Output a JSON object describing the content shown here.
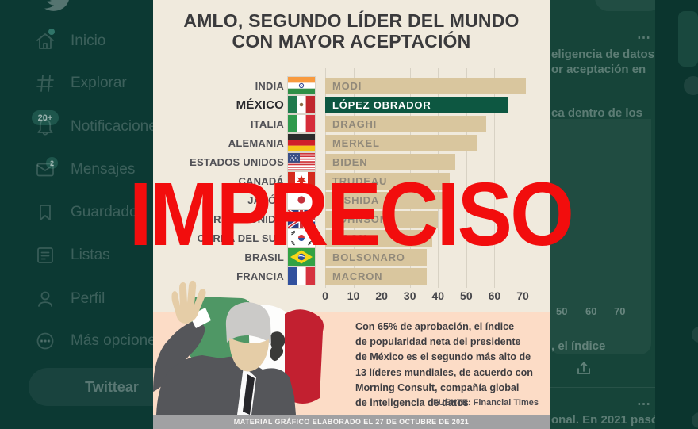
{
  "watermark": {
    "label": "IMPRECISO",
    "color": "#f20d0d"
  },
  "sidebar": {
    "items": [
      {
        "label": "Inicio",
        "icon": "home-icon",
        "badge": "dot"
      },
      {
        "label": "Explorar",
        "icon": "hashtag-icon",
        "badge": ""
      },
      {
        "label": "Notificaciones",
        "icon": "bell-icon",
        "badge": "20+"
      },
      {
        "label": "Mensajes",
        "icon": "envelope-icon",
        "badge": "2"
      },
      {
        "label": "Guardados",
        "icon": "bookmark-icon",
        "badge": ""
      },
      {
        "label": "Listas",
        "icon": "list-icon",
        "badge": ""
      },
      {
        "label": "Perfil",
        "icon": "person-icon",
        "badge": ""
      },
      {
        "label": "Más opciones",
        "icon": "more-circle-icon",
        "badge": ""
      }
    ],
    "tweet_button": "Twittear"
  },
  "infographic": {
    "title_lines": [
      "AMLO, SEGUNDO LÍDER DEL MUNDO",
      "CON MAYOR ACEPTACIÓN"
    ],
    "description_lines": [
      "Con 65% de aprobación, el índice",
      "de popularidad neta del presidente",
      "de México es el segundo más alto de",
      "13 líderes mundiales, de acuerdo con",
      "Morning Consult, compañía global",
      "de inteligencia de datos"
    ],
    "source": "FUENTE: Financial Times",
    "footer": "MATERIAL GRÁFICO ELABORADO EL 27 DE OCTUBRE DE 2021"
  },
  "chart_data": {
    "type": "bar",
    "orientation": "horizontal",
    "title": "AMLO, segundo líder del mundo con mayor aceptación",
    "categories": [
      "INDIA",
      "MÉXICO",
      "ITALIA",
      "ALEMANIA",
      "ESTADOS UNIDOS",
      "CANADÁ",
      "JAPÓN",
      "REINO UNIDO",
      "COREA DEL SUR",
      "BRASIL",
      "FRANCIA"
    ],
    "leaders": [
      "MODI",
      "LÓPEZ OBRADOR",
      "DRAGHI",
      "MERKEL",
      "BIDEN",
      "TRUDEAU",
      "KISHIDA",
      "JOHNSON",
      "MOON",
      "BOLSONARO",
      "MACRON"
    ],
    "values": [
      71,
      65,
      57,
      54,
      46,
      44,
      42,
      40,
      38,
      36,
      36
    ],
    "highlight_index": 1,
    "x_ticks": [
      0,
      10,
      20,
      30,
      40,
      50,
      60,
      70
    ],
    "xlim": [
      0,
      75
    ],
    "grid": true,
    "bar_color": "#d9c69e",
    "highlight_color": "#0d5741",
    "flags": [
      "in",
      "mx",
      "it",
      "de",
      "us",
      "ca",
      "jp",
      "gb",
      "kr",
      "br",
      "fr"
    ],
    "flag_names": [
      "india",
      "mexico",
      "italy",
      "germany",
      "usa",
      "canada",
      "japan",
      "uk",
      "south-korea",
      "brazil",
      "france"
    ]
  },
  "background_tweet": {
    "line1": "eligencia de datos,",
    "line2": "or aceptación en",
    "line3": "ca dentro de los",
    "media_ticks": [
      "50",
      "60",
      "70"
    ],
    "media_caption": ", el índice",
    "line4": "onal. En 2021 pasó",
    "more_label": "⋯"
  }
}
